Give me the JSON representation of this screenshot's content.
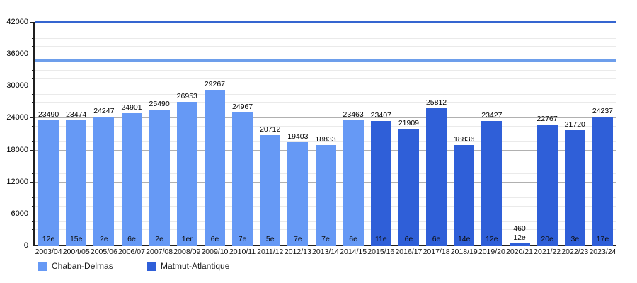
{
  "chart_data": {
    "type": "bar",
    "title": "",
    "categories": [
      "2003/04",
      "2004/05",
      "2005/06",
      "2006/07",
      "2007/08",
      "2008/09",
      "2009/10",
      "2010/11",
      "2011/12",
      "2012/13",
      "2013/14",
      "2014/15",
      "2015/16",
      "2016/17",
      "2017/18",
      "2018/19",
      "2019/20",
      "2020/21",
      "2021/22",
      "2022/23",
      "2023/24"
    ],
    "values": [
      23490,
      23474,
      24247,
      24901,
      25490,
      26953,
      29267,
      24967,
      20712,
      19403,
      18833,
      23463,
      23407,
      21909,
      25812,
      18836,
      23427,
      460,
      22767,
      21720,
      24237
    ],
    "rankings": [
      "12e",
      "15e",
      "2e",
      "6e",
      "2e",
      "1er",
      "6e",
      "7e",
      "5e",
      "7e",
      "7e",
      "6e",
      "11e",
      "6e",
      "6e",
      "14e",
      "12e",
      "12e",
      "20e",
      "3e",
      "17e"
    ],
    "series_index": [
      0,
      0,
      0,
      0,
      0,
      0,
      0,
      0,
      0,
      0,
      0,
      0,
      1,
      1,
      1,
      1,
      1,
      1,
      1,
      1,
      1
    ],
    "stadium_by_season": [
      "Chaban-Delmas",
      "Chaban-Delmas",
      "Chaban-Delmas",
      "Chaban-Delmas",
      "Chaban-Delmas",
      "Chaban-Delmas",
      "Chaban-Delmas",
      "Chaban-Delmas",
      "Chaban-Delmas",
      "Chaban-Delmas",
      "Chaban-Delmas",
      "Chaban-Delmas",
      "Matmut-Atlantique",
      "Matmut-Atlantique",
      "Matmut-Atlantique",
      "Matmut-Atlantique",
      "Matmut-Atlantique",
      "Matmut-Atlantique",
      "Matmut-Atlantique",
      "Matmut-Atlantique",
      "Matmut-Atlantique"
    ],
    "legend": {
      "position": "bottom",
      "items": [
        {
          "label": "Chaban-Delmas",
          "color": "#6699f5"
        },
        {
          "label": "Matmut-Atlantique",
          "color": "#2f5fd8"
        }
      ]
    },
    "y_axis": {
      "min": 0,
      "max": 42000,
      "major_step": 6000,
      "minor_step": 1500,
      "tick_labels": [
        "0",
        "6000",
        "12000",
        "18000",
        "24000",
        "30000",
        "36000",
        "42000"
      ]
    },
    "reference_lines": [
      {
        "name": "matmut-atlantique-capacity",
        "value": 42000,
        "color": "#3565d0"
      },
      {
        "name": "chaban-delmas-capacity",
        "value": 34700,
        "color": "#6d9eeb"
      }
    ],
    "grid": true
  }
}
